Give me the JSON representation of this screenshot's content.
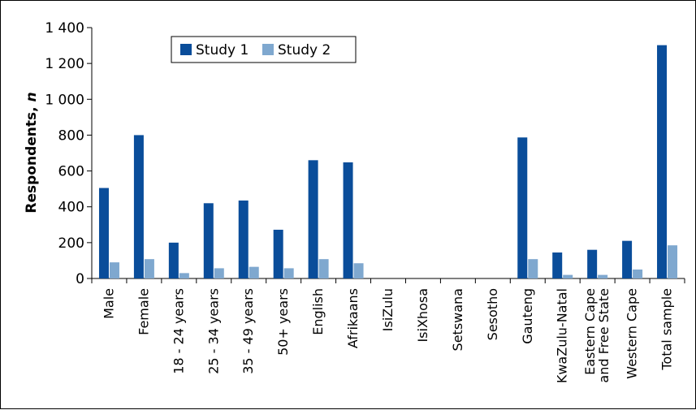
{
  "chart_data": {
    "type": "bar",
    "ylabel": "Respondents, n",
    "ylabel_main": "Respondents, ",
    "ylabel_italic": "n",
    "ylim": [
      0,
      1400
    ],
    "yticks": [
      0,
      200,
      400,
      600,
      800,
      1000,
      1200,
      1400
    ],
    "ytick_labels": [
      "0",
      "200",
      "400",
      "600",
      "800",
      "1 000",
      "1 200",
      "1 400"
    ],
    "grid": false,
    "legend_position": "top-left",
    "categories": [
      [
        "Male"
      ],
      [
        "Female"
      ],
      [
        "18 - 24 years"
      ],
      [
        "25 - 34 years"
      ],
      [
        "35 - 49 years"
      ],
      [
        "50+ years"
      ],
      [
        "English"
      ],
      [
        "Afrikaans"
      ],
      [
        "IsiZulu"
      ],
      [
        "IsiXhosa"
      ],
      [
        "Setswana"
      ],
      [
        "Sesotho"
      ],
      [
        "Gauteng"
      ],
      [
        "KwaZulu-Natal"
      ],
      [
        "Eastern Cape",
        "and Free State"
      ],
      [
        "Western Cape"
      ],
      [
        "Total sample"
      ]
    ],
    "series": [
      {
        "name": "Study 1",
        "color": "#0a4d9a",
        "values": [
          505,
          800,
          200,
          420,
          435,
          272,
          660,
          648,
          0,
          0,
          0,
          0,
          787,
          145,
          160,
          210,
          1302
        ]
      },
      {
        "name": "Study 2",
        "color": "#7fa8cf",
        "values": [
          90,
          108,
          30,
          57,
          65,
          57,
          108,
          85,
          0,
          0,
          0,
          0,
          108,
          20,
          20,
          50,
          185
        ]
      }
    ]
  }
}
